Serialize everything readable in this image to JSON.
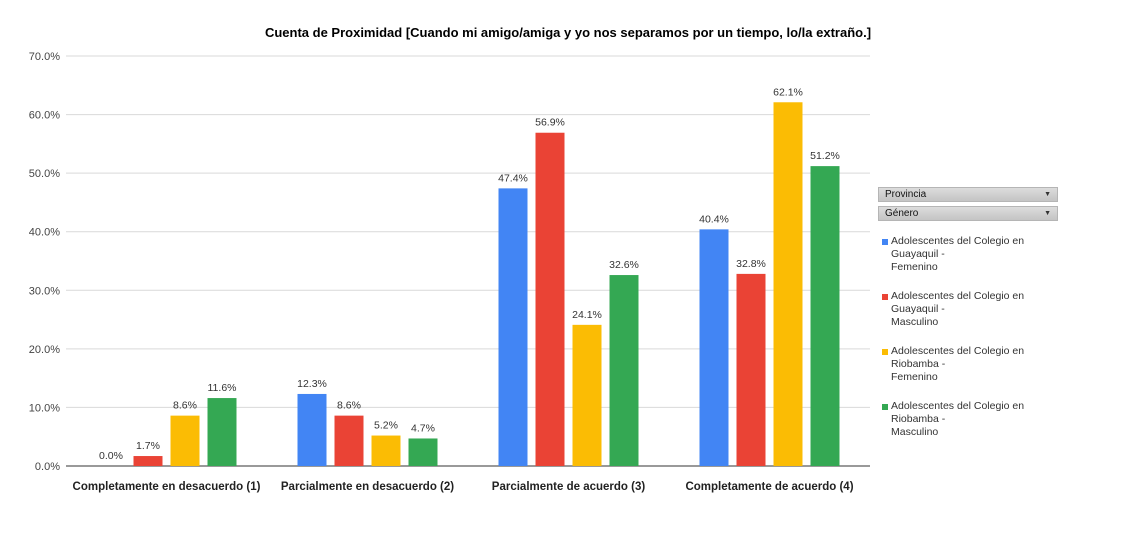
{
  "chart_data": {
    "type": "bar",
    "title": "Cuenta de Proximidad [Cuando mi amigo/amiga y yo nos separamos por un tiempo, lo/la extraño.]",
    "xlabel": "",
    "ylabel": "",
    "ylim": [
      0,
      70
    ],
    "y_ticks": [
      "0.0%",
      "10.0%",
      "20.0%",
      "30.0%",
      "40.0%",
      "50.0%",
      "60.0%",
      "70.0%"
    ],
    "y_tick_values": [
      0,
      10,
      20,
      30,
      40,
      50,
      60,
      70
    ],
    "grid": true,
    "legend_position": "right",
    "categories": [
      "Completamente en desacuerdo (1)",
      "Parcialmente en desacuerdo (2)",
      "Parcialmente de acuerdo (3)",
      "Completamente de acuerdo (4)"
    ],
    "series": [
      {
        "name": "Adolescentes del Colegio en Guayaquil - Femenino",
        "color": "#4285f4",
        "values": [
          0.0,
          12.3,
          47.4,
          40.4
        ],
        "labels": [
          "0.0%",
          "12.3%",
          "47.4%",
          "40.4%"
        ]
      },
      {
        "name": "Adolescentes del Colegio en Guayaquil - Masculino",
        "color": "#ea4335",
        "values": [
          1.7,
          8.6,
          56.9,
          32.8
        ],
        "labels": [
          "1.7%",
          "8.6%",
          "56.9%",
          "32.8%"
        ]
      },
      {
        "name": "Adolescentes del Colegio en Riobamba - Femenino",
        "color": "#fbbc04",
        "values": [
          8.6,
          5.2,
          24.1,
          62.1
        ],
        "labels": [
          "8.6%",
          "5.2%",
          "24.1%",
          "62.1%"
        ]
      },
      {
        "name": "Adolescentes del Colegio en Riobamba - Masculino",
        "color": "#34a853",
        "values": [
          11.6,
          4.7,
          32.6,
          51.2
        ],
        "labels": [
          "11.6%",
          "4.7%",
          "32.6%",
          "51.2%"
        ]
      }
    ]
  },
  "controls": {
    "provincia_label": "Provincia",
    "genero_label": "Género"
  },
  "legend": {
    "items": [
      {
        "line1": "Adolescentes del Colegio en Guayaquil -",
        "line2": "Femenino",
        "color": "#4285f4"
      },
      {
        "line1": "Adolescentes del Colegio en Guayaquil -",
        "line2": "Masculino",
        "color": "#ea4335"
      },
      {
        "line1": "Adolescentes del Colegio en Riobamba -",
        "line2": "Femenino",
        "color": "#fbbc04"
      },
      {
        "line1": "Adolescentes del Colegio en Riobamba -",
        "line2": "Masculino",
        "color": "#34a853"
      }
    ]
  }
}
